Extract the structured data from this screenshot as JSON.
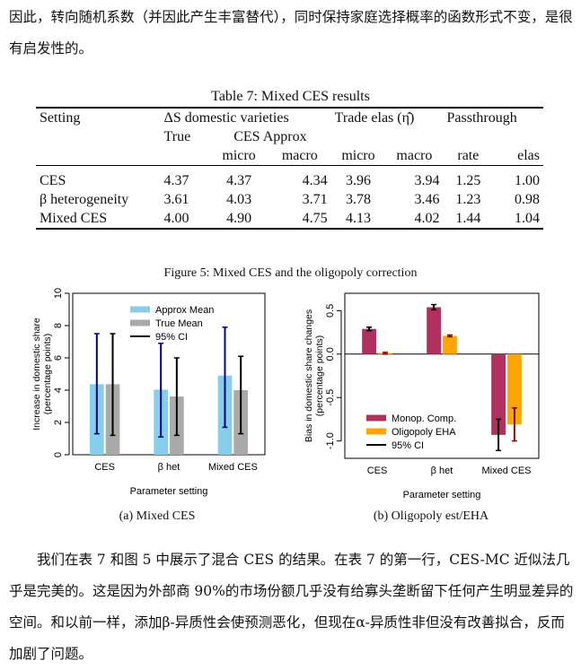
{
  "paragraph_top": "因此，转向随机系数（并因此产生丰富替代），同时保持家庭选择概率的函数形式不变，是很有启发性的。",
  "table": {
    "caption": "Table 7: Mixed CES results",
    "headers": {
      "setting": "Setting",
      "delta_s": "ΔS domestic varieties",
      "trade_elas": "Trade elas (η̂)",
      "passthrough": "Passthrough",
      "true": "True",
      "ces_approx": "CES Approx",
      "micro": "micro",
      "macro": "macro",
      "trade_micro": "micro",
      "trade_macro": "macro",
      "rate": "rate",
      "elas": "elas"
    },
    "rows": [
      {
        "setting": "CES",
        "true": "4.37",
        "micro": "4.37",
        "macro": "4.34",
        "tmicro": "3.96",
        "tmacro": "3.94",
        "rate": "1.25",
        "elas": "1.00"
      },
      {
        "setting": "β heterogeneity",
        "true": "3.61",
        "micro": "4.03",
        "macro": "3.71",
        "tmicro": "3.78",
        "tmacro": "3.46",
        "rate": "1.23",
        "elas": "0.98"
      },
      {
        "setting": "Mixed CES",
        "true": "4.00",
        "micro": "4.90",
        "macro": "4.75",
        "tmicro": "4.13",
        "tmacro": "4.02",
        "rate": "1.44",
        "elas": "1.04"
      }
    ]
  },
  "figure": {
    "caption": "Figure 5: Mixed CES and the oligopoly correction",
    "panel_a_caption": "(a) Mixed CES",
    "panel_b_caption": "(b) Oligopoly est/EHA"
  },
  "chart_data": [
    {
      "type": "bar",
      "title": "",
      "xlabel": "Parameter setting",
      "ylabel": "Increase in domestic share (percentage points)",
      "ylim": [
        0,
        10
      ],
      "yticks": [
        "0",
        "2",
        "4",
        "6",
        "8",
        "10"
      ],
      "categories": [
        "CES",
        "β het",
        "Mixed CES"
      ],
      "legend": [
        "Approx Mean",
        "True Mean",
        "95% CI"
      ],
      "series": [
        {
          "name": "Approx Mean",
          "color": "#87ceeb",
          "values": [
            4.37,
            4.03,
            4.9
          ],
          "ci_low": [
            1.3,
            1.1,
            1.7
          ],
          "ci_high": [
            7.5,
            6.9,
            7.9
          ]
        },
        {
          "name": "True Mean",
          "color": "#aaaaaa",
          "values": [
            4.37,
            3.61,
            4.0
          ],
          "ci_low": [
            1.2,
            1.2,
            1.3
          ],
          "ci_high": [
            7.5,
            6.0,
            6.1
          ]
        }
      ],
      "ci_colors": [
        "#00008b",
        "#000000"
      ]
    },
    {
      "type": "bar",
      "title": "",
      "xlabel": "Parameter setting",
      "ylabel": "Bias in domestic share changes (percentage points)",
      "ylim": [
        -1.2,
        0.7
      ],
      "yticks": [
        "-1.0",
        "-0.5",
        "0.0",
        "0.5"
      ],
      "ytick_values": [
        -1.0,
        -0.5,
        0.0,
        0.5
      ],
      "categories": [
        "CES",
        "β het",
        "Mixed CES"
      ],
      "legend": [
        "Monop. Comp.",
        "Oligopoly EHA",
        "95% CI"
      ],
      "series": [
        {
          "name": "Monop. Comp.",
          "color": "#b03060",
          "values": [
            0.29,
            0.54,
            -0.93
          ],
          "ci_low": [
            0.27,
            0.51,
            -1.11
          ],
          "ci_high": [
            0.31,
            0.57,
            -0.75
          ]
        },
        {
          "name": "Oligopoly EHA",
          "color": "#ffa500",
          "values": [
            0.01,
            0.21,
            -0.81
          ],
          "ci_low": [
            0.0,
            0.2,
            -1.0
          ],
          "ci_high": [
            0.02,
            0.22,
            -0.62
          ]
        }
      ],
      "ci_colors": [
        "#000000",
        "#8b0000"
      ]
    }
  ],
  "paragraph_bottom": "我们在表 7 和图 5 中展示了混合 CES 的结果。在表 7 的第一行，CES-MC 近似法几乎是完美的。这是因为外部商 90%的市场份额几乎没有给寡头垄断留下任何产生明显差异的空间。和以前一样，添加β-异质性会使预测恶化，但现在α-异质性非但没有改善拟合，反而加剧了问题。"
}
